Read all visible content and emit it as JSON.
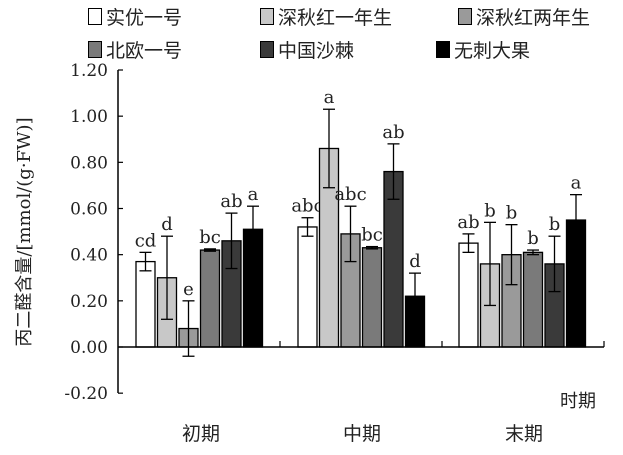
{
  "chart_data": {
    "type": "bar",
    "ylabel": "丙二醛含量/[mmol/(g·FW)]",
    "xlabel": "时期",
    "categories": [
      "初期",
      "中期",
      "末期"
    ],
    "ylim": [
      -0.2,
      1.2
    ],
    "yticks": [
      "-0.20",
      "0.00",
      "0.20",
      "0.40",
      "0.60",
      "0.80",
      "1.00",
      "1.20"
    ],
    "ytick_values": [
      -0.2,
      0.0,
      0.2,
      0.4,
      0.6,
      0.8,
      1.0,
      1.2
    ],
    "series": [
      {
        "name": "实优一号",
        "color": "#ffffff",
        "values": [
          0.37,
          0.52,
          0.45
        ],
        "errors": [
          0.04,
          0.04,
          0.04
        ],
        "labels": [
          "cd",
          "abc",
          "ab"
        ]
      },
      {
        "name": "深秋红一年生",
        "color": "#c8c8c8",
        "values": [
          0.3,
          0.86,
          0.36
        ],
        "errors": [
          0.18,
          0.17,
          0.18
        ],
        "labels": [
          "d",
          "a",
          "b"
        ]
      },
      {
        "name": "深秋红两年生",
        "color": "#9a9a9a",
        "values": [
          0.08,
          0.49,
          0.4
        ],
        "errors": [
          0.12,
          0.12,
          0.13
        ],
        "labels": [
          "e",
          "abc",
          "b"
        ]
      },
      {
        "name": "北欧一号",
        "color": "#7a7a7a",
        "values": [
          0.42,
          0.43,
          0.41
        ],
        "errors": [
          0.005,
          0.005,
          0.01
        ],
        "labels": [
          "bc",
          "bc",
          "b"
        ]
      },
      {
        "name": "中国沙棘",
        "color": "#3a3a3a",
        "values": [
          0.46,
          0.76,
          0.36
        ],
        "errors": [
          0.12,
          0.12,
          0.12
        ],
        "labels": [
          "ab",
          "ab",
          "b"
        ]
      },
      {
        "name": "无刺大果",
        "color": "#000000",
        "values": [
          0.51,
          0.22,
          0.55
        ],
        "errors": [
          0.1,
          0.1,
          0.11
        ],
        "labels": [
          "a",
          "d",
          "a"
        ]
      }
    ],
    "legend_position": "top"
  }
}
